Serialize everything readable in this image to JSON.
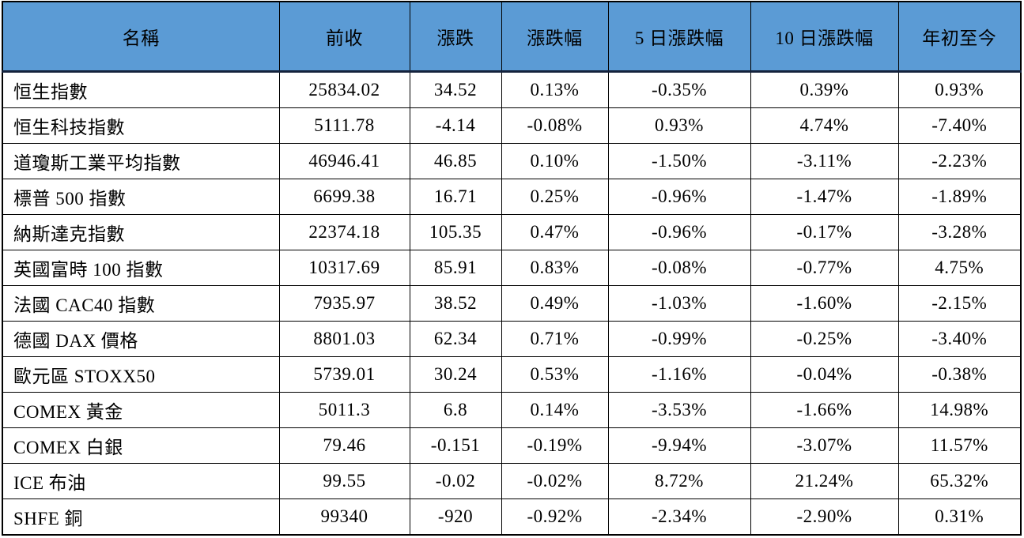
{
  "styles": {
    "header_bg": "#5B9BD5",
    "header_bottom_border": "#14223C",
    "grid_border": "#000000",
    "text_color": "#000000"
  },
  "table": {
    "columns": [
      {
        "key": "name",
        "label": "名稱"
      },
      {
        "key": "prev_close",
        "label": "前收"
      },
      {
        "key": "change",
        "label": "漲跌"
      },
      {
        "key": "change_pct",
        "label": "漲跌幅"
      },
      {
        "key": "change_5d_pct",
        "label": "5 日漲跌幅"
      },
      {
        "key": "change_10d_pct",
        "label": "10 日漲跌幅"
      },
      {
        "key": "ytd_pct",
        "label": "年初至今"
      }
    ],
    "rows": [
      [
        "恒生指數",
        "25834.02",
        "34.52",
        "0.13%",
        "-0.35%",
        "0.39%",
        "0.93%"
      ],
      [
        "恒生科技指數",
        "5111.78",
        "-4.14",
        "-0.08%",
        "0.93%",
        "4.74%",
        "-7.40%"
      ],
      [
        "道瓊斯工業平均指數",
        "46946.41",
        "46.85",
        "0.10%",
        "-1.50%",
        "-3.11%",
        "-2.23%"
      ],
      [
        "標普 500 指數",
        "6699.38",
        "16.71",
        "0.25%",
        "-0.96%",
        "-1.47%",
        "-1.89%"
      ],
      [
        "納斯達克指數",
        "22374.18",
        "105.35",
        "0.47%",
        "-0.96%",
        "-0.17%",
        "-3.28%"
      ],
      [
        "英國富時 100 指數",
        "10317.69",
        "85.91",
        "0.83%",
        "-0.08%",
        "-0.77%",
        "4.75%"
      ],
      [
        "法國 CAC40 指數",
        "7935.97",
        "38.52",
        "0.49%",
        "-1.03%",
        "-1.60%",
        "-2.15%"
      ],
      [
        "德國 DAX 價格",
        "8801.03",
        "62.34",
        "0.71%",
        "-0.99%",
        "-0.25%",
        "-3.40%"
      ],
      [
        "歐元區 STOXX50",
        "5739.01",
        "30.24",
        "0.53%",
        "-1.16%",
        "-0.04%",
        "-0.38%"
      ],
      [
        "COMEX 黃金",
        "5011.3",
        "6.8",
        "0.14%",
        "-3.53%",
        "-1.66%",
        "14.98%"
      ],
      [
        "COMEX 白銀",
        "79.46",
        "-0.151",
        "-0.19%",
        "-9.94%",
        "-3.07%",
        "11.57%"
      ],
      [
        "ICE 布油",
        "99.55",
        "-0.02",
        "-0.02%",
        "8.72%",
        "21.24%",
        "65.32%"
      ],
      [
        "SHFE 銅",
        "99340",
        "-920",
        "-0.92%",
        "-2.34%",
        "-2.90%",
        "0.31%"
      ]
    ]
  },
  "chart_data": {
    "type": "table",
    "columns": [
      "名稱",
      "前收",
      "漲跌",
      "漲跌幅",
      "5 日漲跌幅",
      "10 日漲跌幅",
      "年初至今"
    ],
    "records": [
      {
        "name": "恒生指數",
        "prev_close": 25834.02,
        "change": 34.52,
        "change_pct": 0.13,
        "change_5d_pct": -0.35,
        "change_10d_pct": 0.39,
        "ytd_pct": 0.93
      },
      {
        "name": "恒生科技指數",
        "prev_close": 5111.78,
        "change": -4.14,
        "change_pct": -0.08,
        "change_5d_pct": 0.93,
        "change_10d_pct": 4.74,
        "ytd_pct": -7.4
      },
      {
        "name": "道瓊斯工業平均指數",
        "prev_close": 46946.41,
        "change": 46.85,
        "change_pct": 0.1,
        "change_5d_pct": -1.5,
        "change_10d_pct": -3.11,
        "ytd_pct": -2.23
      },
      {
        "name": "標普 500 指數",
        "prev_close": 6699.38,
        "change": 16.71,
        "change_pct": 0.25,
        "change_5d_pct": -0.96,
        "change_10d_pct": -1.47,
        "ytd_pct": -1.89
      },
      {
        "name": "納斯達克指數",
        "prev_close": 22374.18,
        "change": 105.35,
        "change_pct": 0.47,
        "change_5d_pct": -0.96,
        "change_10d_pct": -0.17,
        "ytd_pct": -3.28
      },
      {
        "name": "英國富時 100 指數",
        "prev_close": 10317.69,
        "change": 85.91,
        "change_pct": 0.83,
        "change_5d_pct": -0.08,
        "change_10d_pct": -0.77,
        "ytd_pct": 4.75
      },
      {
        "name": "法國 CAC40 指數",
        "prev_close": 7935.97,
        "change": 38.52,
        "change_pct": 0.49,
        "change_5d_pct": -1.03,
        "change_10d_pct": -1.6,
        "ytd_pct": -2.15
      },
      {
        "name": "德國 DAX 價格",
        "prev_close": 8801.03,
        "change": 62.34,
        "change_pct": 0.71,
        "change_5d_pct": -0.99,
        "change_10d_pct": -0.25,
        "ytd_pct": -3.4
      },
      {
        "name": "歐元區 STOXX50",
        "prev_close": 5739.01,
        "change": 30.24,
        "change_pct": 0.53,
        "change_5d_pct": -1.16,
        "change_10d_pct": -0.04,
        "ytd_pct": -0.38
      },
      {
        "name": "COMEX 黃金",
        "prev_close": 5011.3,
        "change": 6.8,
        "change_pct": 0.14,
        "change_5d_pct": -3.53,
        "change_10d_pct": -1.66,
        "ytd_pct": 14.98
      },
      {
        "name": "COMEX 白銀",
        "prev_close": 79.46,
        "change": -0.151,
        "change_pct": -0.19,
        "change_5d_pct": -9.94,
        "change_10d_pct": -3.07,
        "ytd_pct": 11.57
      },
      {
        "name": "ICE 布油",
        "prev_close": 99.55,
        "change": -0.02,
        "change_pct": -0.02,
        "change_5d_pct": 8.72,
        "change_10d_pct": 21.24,
        "ytd_pct": 65.32
      },
      {
        "name": "SHFE 銅",
        "prev_close": 99340,
        "change": -920,
        "change_pct": -0.92,
        "change_5d_pct": -2.34,
        "change_10d_pct": -2.9,
        "ytd_pct": 0.31
      }
    ],
    "layout": {
      "grid": true,
      "header_fill": "#5B9BD5",
      "percent_columns": [
        "漲跌幅",
        "5 日漲跌幅",
        "10 日漲跌幅",
        "年初至今"
      ]
    }
  }
}
